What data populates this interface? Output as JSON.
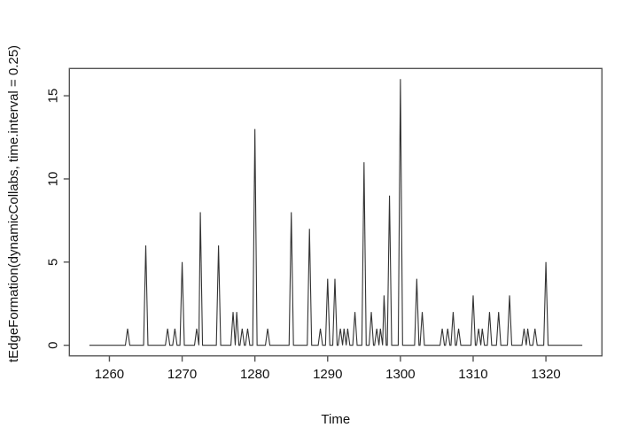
{
  "figure": {
    "background": "#ffffff",
    "line_color": "#333333",
    "axis_color": "#555555",
    "text_color": "#111111"
  },
  "chart_data": {
    "type": "line",
    "title": "",
    "xlabel": "Time",
    "ylabel": "tEdgeFormation(dynamicCollabs, time.interval = 0.25)",
    "x_ticks": [
      1260,
      1270,
      1280,
      1290,
      1300,
      1310,
      1320
    ],
    "y_ticks": [
      0,
      5,
      10,
      15
    ],
    "xlim": [
      1254.5,
      1327.7
    ],
    "ylim": [
      -0.64,
      16.64
    ],
    "grid": false,
    "legend_position": "none",
    "series_name": "tEdgeFormation",
    "series_start": 1257.25,
    "series_end": 1325,
    "baseline_value": 0,
    "spikes": [
      [
        1262.5,
        1
      ],
      [
        1265,
        6
      ],
      [
        1268,
        1
      ],
      [
        1269,
        1
      ],
      [
        1270,
        5
      ],
      [
        1272,
        1
      ],
      [
        1272.5,
        8
      ],
      [
        1275,
        6
      ],
      [
        1277,
        2
      ],
      [
        1277.5,
        2
      ],
      [
        1278.25,
        1
      ],
      [
        1279,
        1
      ],
      [
        1280,
        13
      ],
      [
        1281.75,
        1
      ],
      [
        1285,
        8
      ],
      [
        1287.5,
        7
      ],
      [
        1289,
        1
      ],
      [
        1290,
        4
      ],
      [
        1291,
        4
      ],
      [
        1291.75,
        1
      ],
      [
        1292.25,
        1
      ],
      [
        1292.75,
        1
      ],
      [
        1293.75,
        2
      ],
      [
        1295,
        11
      ],
      [
        1296,
        2
      ],
      [
        1296.75,
        1
      ],
      [
        1297.25,
        1
      ],
      [
        1297.75,
        3
      ],
      [
        1298.5,
        9
      ],
      [
        1300,
        16
      ],
      [
        1302.25,
        4
      ],
      [
        1303,
        2
      ],
      [
        1305.75,
        1
      ],
      [
        1306.5,
        1
      ],
      [
        1307.25,
        2
      ],
      [
        1308,
        1
      ],
      [
        1310,
        3
      ],
      [
        1310.75,
        1
      ],
      [
        1311.25,
        1
      ],
      [
        1312.25,
        2
      ],
      [
        1313.5,
        2
      ],
      [
        1315,
        3
      ],
      [
        1317,
        1
      ],
      [
        1317.5,
        1
      ],
      [
        1318.5,
        1
      ],
      [
        1320,
        5
      ]
    ]
  }
}
